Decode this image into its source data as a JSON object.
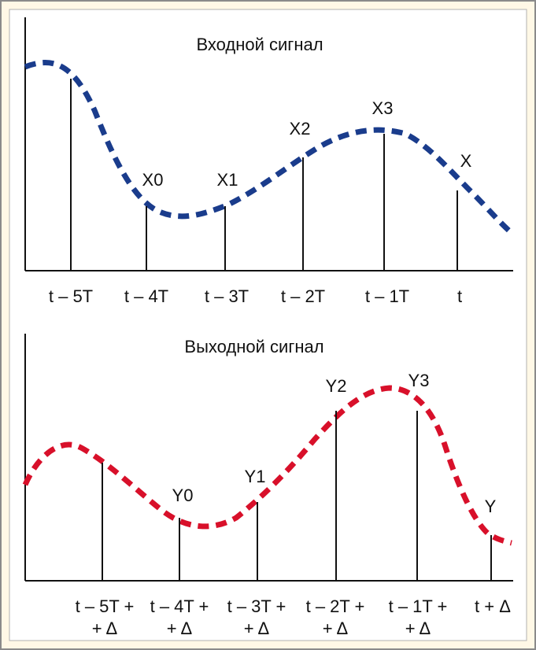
{
  "colors": {
    "background": "#fff8e6",
    "frame_border": "#8a8a8a",
    "input_curve": "#1a3c8c",
    "output_curve": "#d8102a",
    "axis": "#111111"
  },
  "input_panel": {
    "title": "Входной сигнал",
    "sample_labels": [
      "X0",
      "X1",
      "X2",
      "X3",
      "X"
    ],
    "time_labels": [
      "t – 5T",
      "t – 4T",
      "t – 3T",
      "t – 2T",
      "t – 1T",
      "t"
    ]
  },
  "output_panel": {
    "title": "Выходной сигнал",
    "sample_labels": [
      "Y0",
      "Y1",
      "Y2",
      "Y3",
      "Y"
    ],
    "time_labels_line1": [
      "t – 5T +",
      "t – 4T +",
      "t – 3T +",
      "t – 2T +",
      "t – 1T +",
      "t + Δ"
    ],
    "time_labels_line2": [
      "+ Δ",
      "+ Δ",
      "+ Δ",
      "+ Δ",
      "+ Δ",
      ""
    ]
  }
}
